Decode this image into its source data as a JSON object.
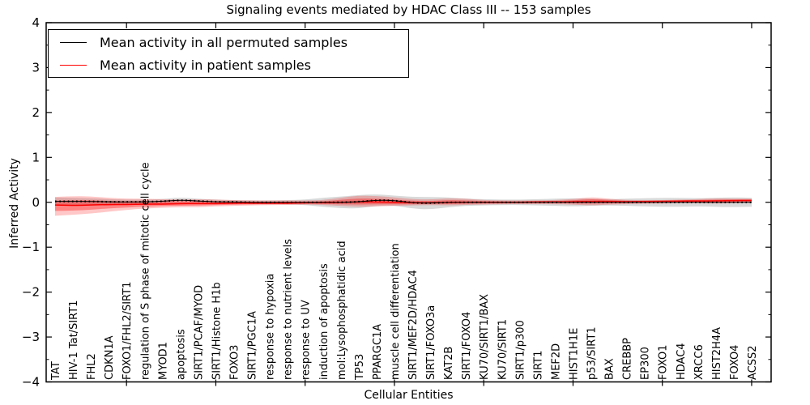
{
  "colors": {
    "permuted_line": "#000000",
    "patient_line": "#ff0000",
    "permuted_band": "rgba(0,0,0,0.15)",
    "patient_band_outer": "rgba(255,0,0,0.22)",
    "patient_band_inner": "rgba(255,0,0,0.34)",
    "axis": "#000000",
    "background": "#ffffff"
  },
  "chart_data": {
    "type": "line",
    "title": "Signaling events mediated by HDAC Class III -- 153 samples",
    "xlabel": "Cellular Entities",
    "ylabel": "Inferred Activity",
    "ylim": [
      -4,
      4
    ],
    "yticks": [
      4,
      3,
      2,
      1,
      0,
      -1,
      -2,
      -3,
      -4
    ],
    "y_minor_step": 0.5,
    "x_major_tick_indices": [
      4,
      9,
      14,
      19,
      24,
      29,
      34,
      39
    ],
    "grid": "off",
    "legend_position": "upper-left",
    "legend": [
      {
        "label": "Mean activity in all permuted samples",
        "color": "#000000"
      },
      {
        "label": "Mean activity in patient samples",
        "color": "#ff0000"
      }
    ],
    "categories": [
      "TAT",
      "HIV-1 Tat/SIRT1",
      "FHL2",
      "CDKN1A",
      "FOXO1/FHL2/SIRT1",
      "regulation of S phase of mitotic cell cycle",
      "MYOD1",
      "apoptosis",
      "SIRT1/PCAF/MYOD",
      "SIRT1/Histone H1b",
      "FOXO3",
      "SIRT1/PGC1A",
      "response to hypoxia",
      "response to nutrient levels",
      "response to UV",
      "induction of apoptosis",
      "mol:Lysophosphatidic acid",
      "TP53",
      "PPARGC1A",
      "muscle cell differentiation",
      "SIRT1/MEF2D/HDAC4",
      "SIRT1/FOXO3a",
      "KAT2B",
      "SIRT1/FOXO4",
      "KU70/SIRT1/BAX",
      "KU70/SIRT1",
      "SIRT1/p300",
      "SIRT1",
      "MEF2D",
      "HIST1H1E",
      "p53/SIRT1",
      "BAX",
      "CREBBP",
      "EP300",
      "FOXO1",
      "HDAC4",
      "XRCC6",
      "HIST2H4A",
      "FOXO4",
      "ACSS2"
    ],
    "series": [
      {
        "name": "Mean activity in all permuted samples",
        "style": "dotted-over-solid",
        "values": [
          0.02,
          0.02,
          0.02,
          0.01,
          0.01,
          0.01,
          0.02,
          0.05,
          0.03,
          0.01,
          0.01,
          0.0,
          0.0,
          0.0,
          0.0,
          0.0,
          0.0,
          0.01,
          0.05,
          0.04,
          -0.01,
          -0.02,
          0.0,
          0.0,
          0.0,
          0.0,
          0.0,
          0.0,
          0.0,
          0.0,
          0.0,
          0.0,
          0.0,
          0.0,
          0.0,
          0.0,
          0.0,
          0.0,
          0.0,
          0.0
        ],
        "band_halfwidth": [
          0.09,
          0.08,
          0.07,
          0.06,
          0.05,
          0.05,
          0.05,
          0.06,
          0.05,
          0.05,
          0.04,
          0.04,
          0.04,
          0.05,
          0.06,
          0.1,
          0.13,
          0.15,
          0.13,
          0.11,
          0.13,
          0.14,
          0.11,
          0.08,
          0.07,
          0.06,
          0.06,
          0.07,
          0.08,
          0.09,
          0.08,
          0.07,
          0.08,
          0.09,
          0.1,
          0.1,
          0.09,
          0.1,
          0.11,
          0.1
        ]
      },
      {
        "name": "Mean activity in patient samples",
        "style": "solid",
        "values": [
          -0.06,
          -0.07,
          -0.06,
          -0.05,
          -0.05,
          -0.04,
          -0.04,
          -0.03,
          -0.03,
          -0.03,
          -0.02,
          -0.02,
          -0.02,
          -0.02,
          -0.01,
          -0.01,
          0.0,
          0.01,
          0.01,
          0.0,
          -0.01,
          -0.01,
          0.0,
          0.0,
          0.0,
          0.0,
          0.0,
          0.01,
          0.01,
          0.01,
          0.02,
          0.02,
          0.01,
          0.02,
          0.02,
          0.03,
          0.03,
          0.03,
          0.04,
          0.04
        ],
        "band_upper": [
          0.12,
          0.14,
          0.13,
          0.1,
          0.08,
          0.08,
          0.07,
          0.06,
          0.07,
          0.06,
          0.05,
          0.04,
          0.04,
          0.04,
          0.04,
          0.05,
          0.1,
          0.15,
          0.14,
          0.11,
          0.07,
          0.06,
          0.09,
          0.08,
          0.05,
          0.04,
          0.04,
          0.04,
          0.05,
          0.07,
          0.12,
          0.08,
          0.05,
          0.05,
          0.05,
          0.06,
          0.07,
          0.09,
          0.08,
          0.08
        ],
        "band_lower": [
          -0.3,
          -0.28,
          -0.25,
          -0.21,
          -0.17,
          -0.14,
          -0.12,
          -0.11,
          -0.11,
          -0.09,
          -0.08,
          -0.07,
          -0.06,
          -0.06,
          -0.05,
          -0.06,
          -0.08,
          -0.1,
          -0.09,
          -0.08,
          -0.07,
          -0.06,
          -0.07,
          -0.06,
          -0.05,
          -0.04,
          -0.04,
          -0.04,
          -0.04,
          -0.05,
          -0.07,
          -0.05,
          -0.04,
          -0.03,
          -0.03,
          -0.02,
          -0.02,
          -0.03,
          -0.02,
          -0.01
        ]
      }
    ]
  }
}
